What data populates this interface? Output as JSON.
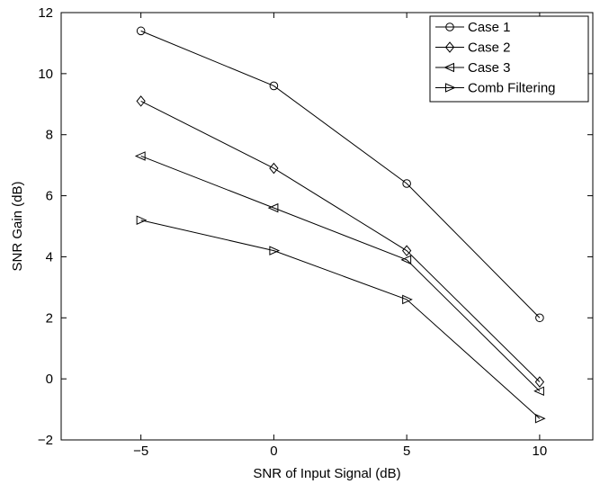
{
  "chart_data": {
    "type": "line",
    "xlabel": "SNR of Input Signal (dB)",
    "ylabel": "SNR Gain (dB)",
    "xlim": [
      -8,
      12
    ],
    "ylim": [
      -2,
      12
    ],
    "x": [
      -5,
      0,
      5,
      10
    ],
    "xticks": [
      -5,
      0,
      5,
      10
    ],
    "xtick_labels": [
      "−5",
      "0",
      "5",
      "10"
    ],
    "yticks": [
      -2,
      0,
      2,
      4,
      6,
      8,
      10,
      12
    ],
    "ytick_labels": [
      "−2",
      "0",
      "2",
      "4",
      "6",
      "8",
      "10",
      "12"
    ],
    "grid": false,
    "legend_position": "top-right",
    "series": [
      {
        "name": "Case 1",
        "marker": "circle",
        "values": [
          11.4,
          9.6,
          6.4,
          2.0
        ]
      },
      {
        "name": "Case 2",
        "marker": "diamond",
        "values": [
          9.1,
          6.9,
          4.2,
          -0.1
        ]
      },
      {
        "name": "Case 3",
        "marker": "triangle-left",
        "values": [
          7.3,
          5.6,
          3.9,
          -0.4
        ]
      },
      {
        "name": "Comb Filtering",
        "marker": "triangle-right",
        "values": [
          5.2,
          4.2,
          2.6,
          -1.3
        ]
      }
    ]
  }
}
